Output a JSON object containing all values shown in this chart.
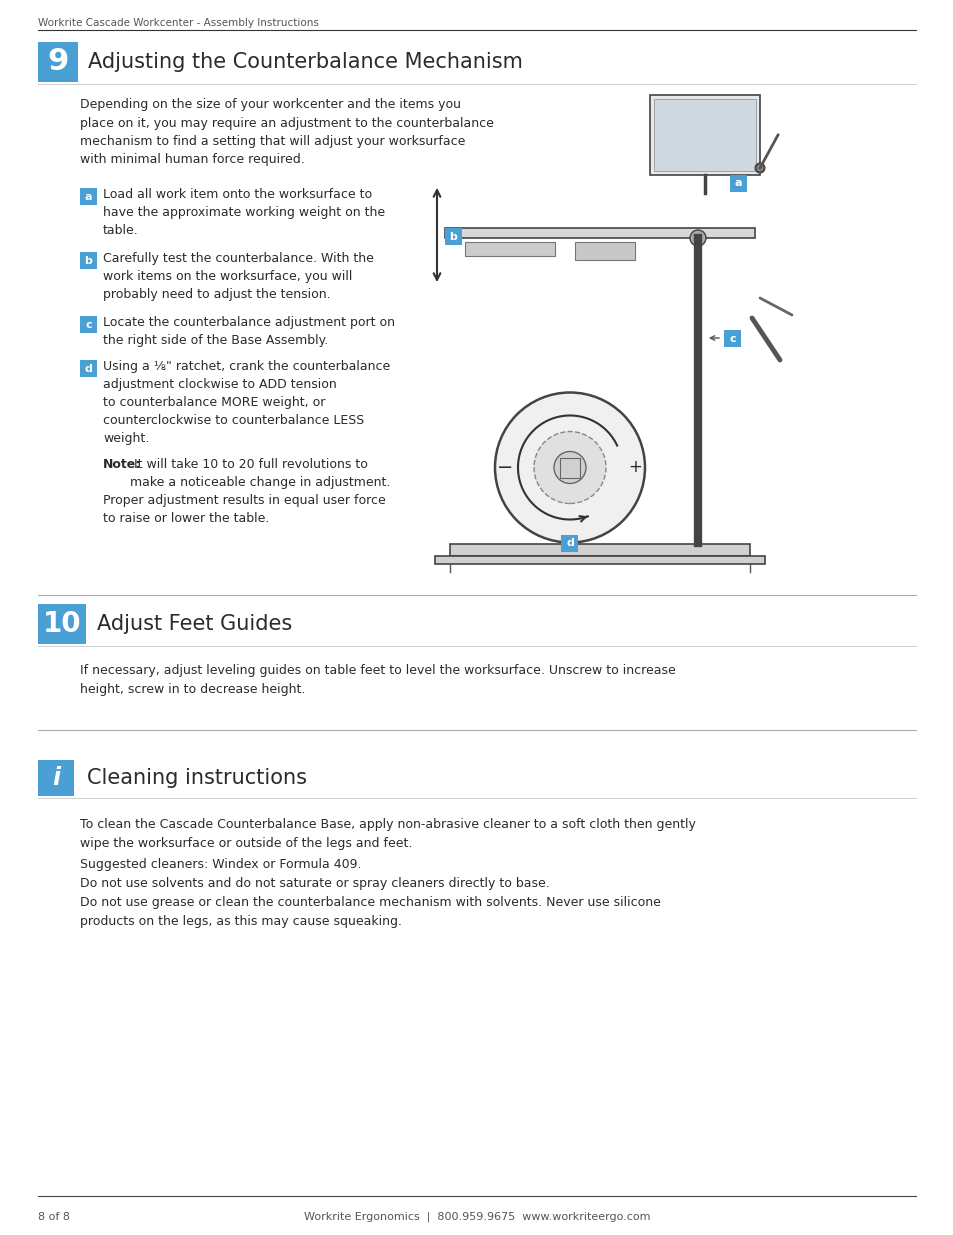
{
  "page_header": "Workrite Cascade Workcenter - Assembly Instructions",
  "footer_left": "8 of 8",
  "footer_center": "Workrite Ergonomics  |  800.959.9675  www.workriteergo.com",
  "bg_color": "#ffffff",
  "blue_color": "#4a9fd4",
  "text_color": "#2b2b2b",
  "gray_text": "#555555",
  "section9_number": "9",
  "section9_title": "Adjusting the Counterbalance Mechanism",
  "section9_intro": "Depending on the size of your workcenter and the items you\nplace on it, you may require an adjustment to the counterbalance\nmechanism to find a setting that will adjust your worksurface\nwith minimal human force required.",
  "step_a_label": "a",
  "step_a_text": "Load all work item onto the worksurface to\nhave the approximate working weight on the\ntable.",
  "step_b_label": "b",
  "step_b_text": "Carefully test the counterbalance. With the\nwork items on the worksurface, you will\nprobably need to adjust the tension.",
  "step_c_label": "c",
  "step_c_text": "Locate the counterbalance adjustment port on\nthe right side of the Base Assembly.",
  "step_d_label": "d",
  "step_d_text": "Using a ⅛\" ratchet, crank the counterbalance\nadjustment clockwise to ADD tension\nto counterbalance MORE weight, or\ncounterclockwise to counterbalance LESS\nweight.",
  "note_bold": "Note:",
  "note_text": " It will take 10 to 20 full revolutions to\nmake a noticeable change in adjustment.",
  "proper_text": "Proper adjustment results in equal user force\nto raise or lower the table.",
  "section10_number": "10",
  "section10_title": "Adjust Feet Guides",
  "section10_text": "If necessary, adjust leveling guides on table feet to level the worksurface. Unscrew to increase\nheight, screw in to decrease height.",
  "cleaning_icon": "i",
  "cleaning_title": "Cleaning instructions",
  "cleaning_text1": "To clean the Cascade Counterbalance Base, apply non-abrasive cleaner to a soft cloth then gently\nwipe the worksurface or outside of the legs and feet.",
  "cleaning_text2": "Suggested cleaners: Windex or Formula 409.\nDo not use solvents and do not saturate or spray cleaners directly to base.",
  "cleaning_text3": "Do not use grease or clean the counterbalance mechanism with solvents. Never use silicone\nproducts on the legs, as this may cause squeaking."
}
